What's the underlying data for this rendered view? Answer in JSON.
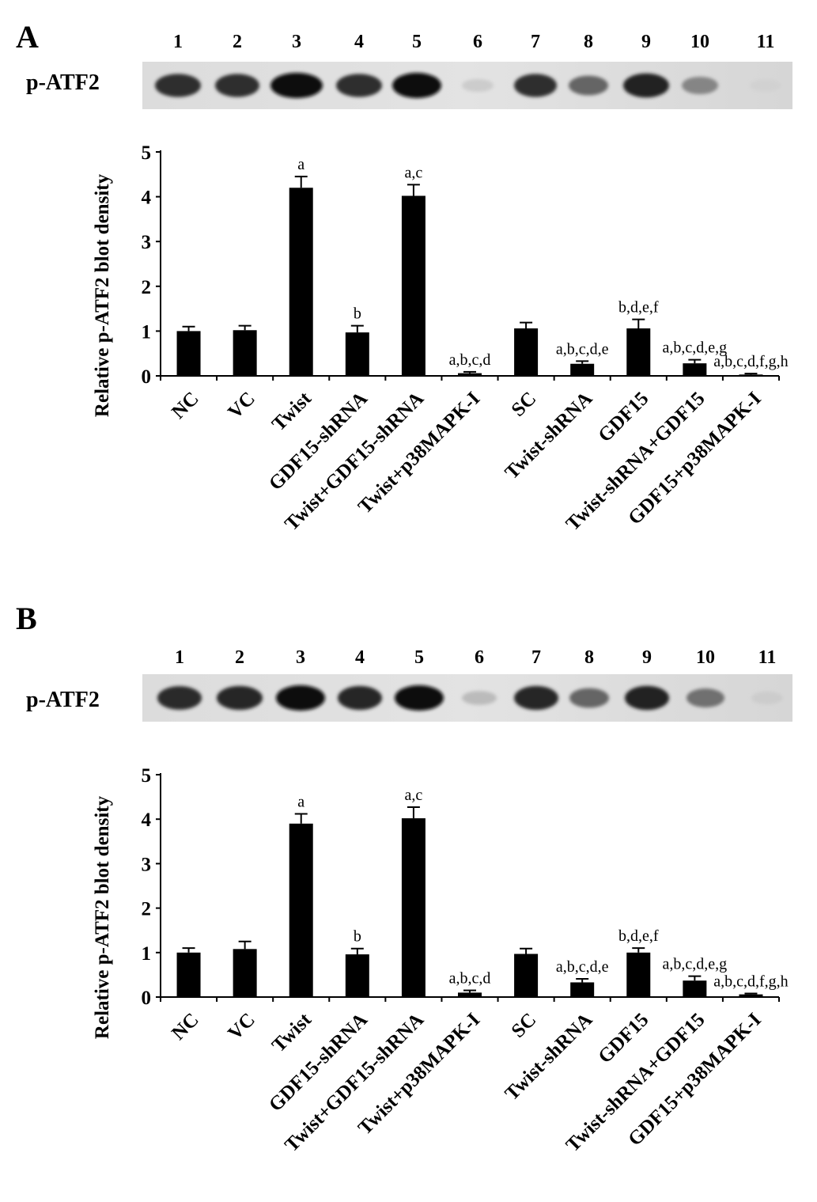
{
  "panels": [
    {
      "letter": "A",
      "blot_label": "p-ATF2",
      "lanes": [
        "1",
        "2",
        "3",
        "4",
        "5",
        "6",
        "7",
        "8",
        "9",
        "10",
        "11"
      ]
    },
    {
      "letter": "B",
      "blot_label": "p-ATF2",
      "lanes": [
        "1",
        "2",
        "3",
        "4",
        "5",
        "6",
        "7",
        "8",
        "9",
        "10",
        "11"
      ]
    }
  ],
  "chart_data": [
    {
      "type": "bar",
      "panel": "A",
      "ylabel": "Relative p-ATF2 blot density",
      "xlabel": "",
      "ylim": [
        0,
        5
      ],
      "yticks": [
        0,
        1,
        2,
        3,
        4,
        5
      ],
      "grid": false,
      "bar_color": "#000000",
      "categories": [
        "NC",
        "VC",
        "Twist",
        "GDF15-shRNA",
        "Twist+GDF15-shRNA",
        "Twist+p38MAPK-I",
        "SC",
        "Twist-shRNA",
        "GDF15",
        "Twist-shRNA+GDF15",
        "GDF15+p38MAPK-I"
      ],
      "values": [
        1.0,
        1.02,
        4.2,
        0.97,
        4.02,
        0.06,
        1.06,
        0.27,
        1.06,
        0.28,
        0.03
      ],
      "errors": [
        0.1,
        0.1,
        0.25,
        0.15,
        0.25,
        0.03,
        0.13,
        0.06,
        0.2,
        0.08,
        0.02
      ],
      "annotations": [
        "",
        "",
        "a",
        "b",
        "a,c",
        "a,b,c,d",
        "",
        "a,b,c,d,e",
        "b,d,e,f",
        "a,b,c,d,e,g",
        "a,b,c,d,f,g,h"
      ]
    },
    {
      "type": "bar",
      "panel": "B",
      "ylabel": "Relative p-ATF2 blot density",
      "xlabel": "",
      "ylim": [
        0,
        5
      ],
      "yticks": [
        0,
        1,
        2,
        3,
        4,
        5
      ],
      "grid": false,
      "bar_color": "#000000",
      "categories": [
        "NC",
        "VC",
        "Twist",
        "GDF15-shRNA",
        "Twist+GDF15-shRNA",
        "Twist+p38MAPK-I",
        "SC",
        "Twist-shRNA",
        "GDF15",
        "Twist-shRNA+GDF15",
        "GDF15+p38MAPK-I"
      ],
      "values": [
        1.0,
        1.08,
        3.9,
        0.96,
        4.02,
        0.1,
        0.97,
        0.33,
        1.0,
        0.37,
        0.06
      ],
      "errors": [
        0.1,
        0.17,
        0.22,
        0.13,
        0.25,
        0.05,
        0.12,
        0.08,
        0.1,
        0.1,
        0.02
      ],
      "annotations": [
        "",
        "",
        "a",
        "b",
        "a,c",
        "a,b,c,d",
        "",
        "a,b,c,d,e",
        "b,d,e,f",
        "a,b,c,d,e,g",
        "a,b,c,d,f,g,h"
      ]
    }
  ]
}
